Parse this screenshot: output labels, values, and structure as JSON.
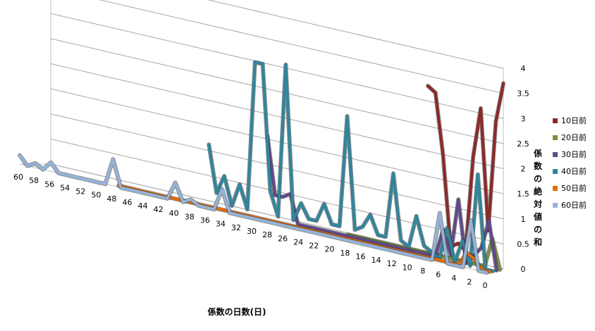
{
  "chart_data": {
    "type": "line",
    "title": "",
    "xlabel": "係数の日数(日)",
    "ylabel": "係数の絶対値の和",
    "x": [
      60,
      59,
      58,
      57,
      56,
      55,
      54,
      53,
      52,
      51,
      50,
      49,
      48,
      47,
      46,
      45,
      44,
      43,
      42,
      41,
      40,
      39,
      38,
      37,
      36,
      35,
      34,
      33,
      32,
      31,
      30,
      29,
      28,
      27,
      26,
      25,
      24,
      23,
      22,
      21,
      20,
      19,
      18,
      17,
      16,
      15,
      14,
      13,
      12,
      11,
      10,
      9,
      8,
      7,
      6,
      5,
      4,
      3,
      2,
      1,
      0
    ],
    "x_tick_labels": [
      "60",
      "58",
      "56",
      "54",
      "52",
      "50",
      "48",
      "46",
      "44",
      "42",
      "40",
      "38",
      "36",
      "34",
      "32",
      "30",
      "28",
      "26",
      "24",
      "22",
      "20",
      "18",
      "16",
      "14",
      "12",
      "10",
      "8",
      "6",
      "4",
      "2",
      "0"
    ],
    "y_tick_labels": [
      "0",
      "0.5",
      "1",
      "1.5",
      "2",
      "2.5",
      "3",
      "3.5",
      "4"
    ],
    "ylim": [
      0,
      4
    ],
    "legend_position": "right",
    "grid": true,
    "series": [
      {
        "name": "10日前",
        "color": "#8B2A28",
        "values": [
          null,
          null,
          null,
          null,
          null,
          null,
          null,
          null,
          null,
          null,
          null,
          null,
          null,
          null,
          null,
          null,
          null,
          null,
          null,
          null,
          null,
          null,
          null,
          null,
          null,
          null,
          null,
          null,
          null,
          null,
          null,
          null,
          null,
          null,
          null,
          null,
          null,
          null,
          null,
          null,
          null,
          null,
          null,
          null,
          null,
          null,
          null,
          null,
          null,
          null,
          3.3,
          3.2,
          2,
          0.2,
          0.3,
          0.2,
          2.1,
          3.1,
          0.7,
          2.9,
          3.7
        ]
      },
      {
        "name": "20日前",
        "color": "#77933C",
        "values": [
          null,
          null,
          null,
          null,
          null,
          null,
          null,
          null,
          null,
          null,
          null,
          null,
          null,
          null,
          null,
          null,
          null,
          null,
          null,
          null,
          null,
          null,
          null,
          null,
          null,
          null,
          null,
          null,
          null,
          null,
          null,
          null,
          null,
          null,
          null,
          null,
          null,
          null,
          null,
          null,
          0,
          0,
          0,
          0,
          0,
          0,
          0,
          0,
          0,
          0,
          0,
          0,
          0,
          0,
          0,
          0,
          0,
          0,
          0,
          0.6,
          0
        ]
      },
      {
        "name": "30日前",
        "color": "#5F4A8B",
        "values": [
          null,
          null,
          null,
          null,
          null,
          null,
          null,
          null,
          null,
          null,
          null,
          null,
          null,
          null,
          null,
          null,
          null,
          null,
          null,
          null,
          null,
          null,
          null,
          null,
          null,
          null,
          null,
          null,
          null,
          null,
          1.7,
          0.5,
          0.5,
          0.6,
          0,
          0,
          0,
          0,
          0,
          0,
          0,
          0,
          0,
          0,
          0,
          0,
          0,
          0,
          0,
          0,
          0,
          0,
          0,
          0.6,
          0.1,
          1.3,
          0,
          0.2,
          0.4,
          1,
          0
        ]
      },
      {
        "name": "40日前",
        "color": "#31859C",
        "values": [
          null,
          null,
          null,
          null,
          null,
          null,
          null,
          null,
          null,
          null,
          null,
          null,
          null,
          null,
          null,
          null,
          null,
          null,
          null,
          null,
          null,
          null,
          null,
          1.3,
          0.3,
          0.7,
          0.1,
          0.6,
          0.1,
          3.3,
          3.3,
          0.6,
          0.1,
          3.4,
          0.1,
          0.5,
          0.2,
          0.2,
          0.6,
          0.2,
          0.2,
          2.6,
          0.2,
          0.3,
          0.6,
          0.2,
          0.2,
          1.6,
          0.2,
          0.1,
          0.8,
          0.2,
          0.1,
          0,
          0.7,
          0,
          0.5,
          0,
          2,
          0,
          0
        ]
      },
      {
        "name": "50日前",
        "color": "#E46C0A",
        "values": [
          null,
          null,
          null,
          null,
          null,
          null,
          null,
          null,
          null,
          null,
          null,
          null,
          0,
          0,
          0,
          0,
          0,
          0,
          0,
          0,
          0,
          0,
          0,
          0,
          0,
          0,
          0,
          0,
          0,
          0,
          0,
          0,
          0,
          0,
          0,
          0,
          0,
          0,
          0,
          0,
          0,
          0,
          0,
          0,
          0,
          0,
          0,
          0,
          0,
          0,
          0,
          0,
          0,
          0,
          0,
          0,
          0,
          0.3,
          0.2,
          0,
          0
        ]
      },
      {
        "name": "60日前",
        "color": "#95B3D7",
        "values": [
          0.2,
          0,
          0.1,
          0,
          0.2,
          0,
          0,
          0,
          0,
          0,
          0,
          0,
          0.6,
          0,
          0,
          0,
          0,
          0,
          0,
          0,
          0.4,
          0,
          0.1,
          0,
          0,
          0,
          0.5,
          0,
          0,
          0,
          0,
          0,
          0,
          0,
          0,
          0,
          0,
          0,
          0,
          0,
          0,
          0,
          0,
          0,
          0,
          0,
          0,
          0,
          0,
          0,
          0,
          0,
          0,
          0,
          1.1,
          0,
          0,
          0,
          1.1,
          0,
          0
        ]
      }
    ]
  }
}
